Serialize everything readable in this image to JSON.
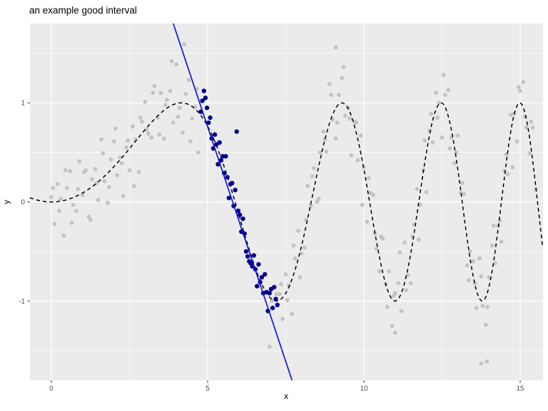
{
  "chart_data": {
    "type": "scatter",
    "title": "an example good interval",
    "xlabel": "x",
    "ylabel": "y",
    "xlim": [
      -0.685,
      15.73
    ],
    "ylim": [
      -1.8,
      1.8
    ],
    "x_ticks": [
      0,
      5,
      10,
      15
    ],
    "x_tick_labels": [
      "0",
      "5",
      "10",
      "15"
    ],
    "y_ticks": [
      -1,
      0,
      1
    ],
    "y_tick_labels": [
      "-1",
      "0",
      "1"
    ],
    "x_minor_gridlines": [
      2.5,
      7.5,
      12.5
    ],
    "y_minor_gridlines": [
      -1.5,
      -0.5,
      0.5,
      1.5
    ],
    "grid": "on",
    "legend": "none",
    "panel_background": "#EBEBEB",
    "grid_color": "#FFFFFF",
    "tick_label_color": "#4D4D4D",
    "series": [
      {
        "name": "background-points",
        "color": "#C3C3C3",
        "radius": 2.9,
        "points": [
          [
            0.0,
            0.05
          ],
          [
            0.1,
            -0.22
          ],
          [
            0.2,
            0.18
          ],
          [
            0.3,
            0.03
          ],
          [
            0.4,
            -0.34
          ],
          [
            0.5,
            0.14
          ],
          [
            0.6,
            0.31
          ],
          [
            0.7,
            -0.03
          ],
          [
            0.8,
            -0.09
          ],
          [
            0.9,
            0.41
          ],
          [
            1.0,
            0.07
          ],
          [
            1.1,
            0.32
          ],
          [
            1.2,
            -0.15
          ],
          [
            1.3,
            0.23
          ],
          [
            1.4,
            0.33
          ],
          [
            1.5,
            0.02
          ],
          [
            1.6,
            0.63
          ],
          [
            1.7,
            0.21
          ],
          [
            1.8,
            -0.01
          ],
          [
            1.9,
            0.43
          ],
          [
            2.0,
            0.61
          ],
          [
            2.1,
            0.27
          ],
          [
            2.2,
            0.45
          ],
          [
            2.3,
            0.06
          ],
          [
            2.4,
            0.55
          ],
          [
            2.5,
            0.32
          ],
          [
            2.6,
            0.76
          ],
          [
            2.7,
            0.63
          ],
          [
            2.8,
            0.3
          ],
          [
            2.9,
            0.81
          ],
          [
            3.0,
            1.01
          ],
          [
            3.1,
            0.69
          ],
          [
            3.2,
            0.65
          ],
          [
            3.3,
            1.17
          ],
          [
            3.4,
            0.85
          ],
          [
            3.5,
            1.1
          ],
          [
            3.6,
            0.64
          ],
          [
            3.7,
            1.03
          ],
          [
            3.8,
            1.12
          ],
          [
            3.9,
            0.8
          ],
          [
            4.0,
            1.39
          ],
          [
            4.1,
            0.95
          ],
          [
            4.2,
            0.7
          ],
          [
            4.3,
            1.09
          ],
          [
            4.4,
            1.23
          ],
          [
            4.5,
            0.84
          ],
          [
            4.6,
            0.96
          ],
          [
            4.7,
            0.5
          ],
          [
            0.05,
            0.14
          ],
          [
            0.25,
            -0.09
          ],
          [
            0.45,
            0.32
          ],
          [
            0.65,
            -0.21
          ],
          [
            0.85,
            0.13
          ],
          [
            1.05,
            0.3
          ],
          [
            1.25,
            -0.18
          ],
          [
            1.45,
            0.19
          ],
          [
            1.65,
            0.49
          ],
          [
            1.85,
            0.15
          ],
          [
            2.05,
            0.74
          ],
          [
            2.25,
            0.39
          ],
          [
            2.45,
            0.62
          ],
          [
            2.65,
            0.16
          ],
          [
            2.85,
            0.85
          ],
          [
            3.05,
            0.73
          ],
          [
            3.25,
            1.1
          ],
          [
            3.45,
            0.68
          ],
          [
            3.65,
            0.98
          ],
          [
            3.85,
            1.42
          ],
          [
            4.05,
            0.86
          ],
          [
            4.25,
            1.59
          ],
          [
            4.45,
            0.61
          ],
          [
            4.65,
            1.14
          ],
          [
            7.3,
            -0.93
          ],
          [
            7.4,
            -1.18
          ],
          [
            7.5,
            -0.73
          ],
          [
            7.6,
            -0.84
          ],
          [
            7.7,
            -1.13
          ],
          [
            7.8,
            -0.57
          ],
          [
            7.9,
            -0.29
          ],
          [
            8.0,
            -0.52
          ],
          [
            8.1,
            -0.46
          ],
          [
            8.2,
            0.16
          ],
          [
            8.3,
            -0.04
          ],
          [
            8.4,
            0.34
          ],
          [
            8.5,
            0.0
          ],
          [
            8.6,
            0.5
          ],
          [
            8.7,
            0.71
          ],
          [
            8.8,
            0.51
          ],
          [
            8.9,
            1.19
          ],
          [
            9.0,
            0.83
          ],
          [
            9.1,
            0.64
          ],
          [
            9.2,
            1.08
          ],
          [
            9.3,
            1.25
          ],
          [
            9.4,
            0.87
          ],
          [
            9.5,
            0.95
          ],
          [
            9.6,
            0.47
          ],
          [
            9.7,
            0.81
          ],
          [
            9.8,
            0.42
          ],
          [
            9.9,
            0.67
          ],
          [
            10.0,
            0.35
          ],
          [
            10.1,
            -0.2
          ],
          [
            10.2,
            0.09
          ],
          [
            10.3,
            0.07
          ],
          [
            10.4,
            -0.47
          ],
          [
            10.5,
            -0.7
          ],
          [
            10.6,
            -0.37
          ],
          [
            10.7,
            -0.83
          ],
          [
            10.8,
            -0.7
          ],
          [
            10.9,
            -1.25
          ],
          [
            11.0,
            -0.92
          ],
          [
            11.1,
            -0.82
          ],
          [
            11.2,
            -1.1
          ],
          [
            11.3,
            -0.41
          ],
          [
            11.4,
            -0.74
          ],
          [
            11.5,
            -0.82
          ],
          [
            11.6,
            -0.23
          ],
          [
            11.7,
            0.13
          ],
          [
            11.8,
            -0.03
          ],
          [
            11.9,
            0.32
          ],
          [
            12.0,
            0.1
          ],
          [
            12.1,
            0.72
          ],
          [
            12.2,
            0.6
          ],
          [
            12.3,
            1.1
          ],
          [
            12.4,
            1.0
          ],
          [
            12.5,
            0.65
          ],
          [
            12.6,
            1.08
          ],
          [
            12.7,
            1.13
          ],
          [
            12.8,
            0.65
          ],
          [
            12.9,
            0.39
          ],
          [
            13.0,
            0.67
          ],
          [
            13.1,
            0.09
          ],
          [
            13.2,
            0.08
          ],
          [
            13.3,
            -0.64
          ],
          [
            13.4,
            -0.5
          ],
          [
            13.5,
            -0.6
          ],
          [
            13.6,
            -1.07
          ],
          [
            13.7,
            -0.57
          ],
          [
            13.8,
            -1.05
          ],
          [
            13.9,
            -1.24
          ],
          [
            14.0,
            -0.76
          ],
          [
            14.1,
            -0.44
          ],
          [
            14.2,
            -0.62
          ],
          [
            14.3,
            -0.24
          ],
          [
            14.4,
            -0.4
          ],
          [
            14.5,
            0.31
          ],
          [
            14.6,
            0.28
          ],
          [
            14.7,
            0.88
          ],
          [
            14.8,
            0.89
          ],
          [
            14.9,
            0.61
          ],
          [
            15.0,
            1.12
          ],
          [
            15.1,
            1.21
          ],
          [
            15.2,
            0.75
          ],
          [
            15.3,
            0.49
          ],
          [
            15.4,
            0.75
          ],
          [
            15.5,
            0.13
          ],
          [
            7.35,
            -0.83
          ],
          [
            7.55,
            -0.99
          ],
          [
            7.75,
            -0.44
          ],
          [
            7.95,
            -0.76
          ],
          [
            8.15,
            -0.18
          ],
          [
            8.35,
            0.26
          ],
          [
            8.55,
            0.03
          ],
          [
            8.75,
            0.63
          ],
          [
            8.95,
            1.08
          ],
          [
            9.15,
            0.8
          ],
          [
            9.35,
            1.36
          ],
          [
            9.55,
            0.84
          ],
          [
            9.75,
            0.8
          ],
          [
            9.95,
            -0.03
          ],
          [
            10.15,
            0.24
          ],
          [
            10.35,
            -0.32
          ],
          [
            10.55,
            -0.35
          ],
          [
            10.75,
            -1.06
          ],
          [
            10.95,
            -0.95
          ],
          [
            11.15,
            -0.51
          ],
          [
            11.35,
            -0.89
          ],
          [
            11.55,
            -0.35
          ],
          [
            11.75,
            -0.38
          ],
          [
            11.95,
            0.62
          ],
          [
            12.15,
            0.89
          ],
          [
            12.35,
            0.85
          ],
          [
            12.55,
            1.28
          ],
          [
            12.75,
            0.54
          ],
          [
            12.95,
            0.5
          ],
          [
            13.15,
            0.19
          ],
          [
            13.35,
            -0.79
          ],
          [
            13.55,
            -0.82
          ],
          [
            13.75,
            -0.75
          ],
          [
            13.95,
            -1.06
          ],
          [
            14.15,
            -0.24
          ],
          [
            14.35,
            -0.19
          ],
          [
            14.55,
            0.48
          ],
          [
            14.75,
            0.35
          ],
          [
            14.95,
            1.16
          ],
          [
            15.15,
            0.86
          ],
          [
            15.35,
            0.81
          ],
          [
            9.1,
            1.56
          ],
          [
            13.75,
            -1.63
          ],
          [
            13.93,
            -1.61
          ],
          [
            11.0,
            -1.32
          ],
          [
            6.98,
            -1.46
          ],
          [
            7.05,
            -1.0
          ],
          [
            7.2,
            -0.93
          ]
        ]
      },
      {
        "name": "interval-points",
        "color": "#00008B",
        "radius": 3.2,
        "points": [
          [
            4.78,
            0.91
          ],
          [
            4.83,
            1.02
          ],
          [
            4.88,
            1.12
          ],
          [
            4.93,
            1.05
          ],
          [
            4.98,
            0.95
          ],
          [
            5.03,
            0.8
          ],
          [
            5.08,
            0.85
          ],
          [
            5.13,
            0.64
          ],
          [
            5.18,
            0.54
          ],
          [
            5.23,
            0.68
          ],
          [
            5.28,
            0.58
          ],
          [
            5.33,
            0.38
          ],
          [
            5.38,
            0.6
          ],
          [
            5.43,
            0.42
          ],
          [
            5.48,
            0.46
          ],
          [
            5.53,
            0.29
          ],
          [
            5.58,
            0.46
          ],
          [
            5.63,
            0.25
          ],
          [
            5.68,
            0.04
          ],
          [
            5.73,
            0.18
          ],
          [
            5.78,
            0.19
          ],
          [
            5.83,
            -0.04
          ],
          [
            5.88,
            0.12
          ],
          [
            5.93,
            0.71
          ],
          [
            5.98,
            -0.09
          ],
          [
            6.03,
            -0.13
          ],
          [
            6.08,
            -0.3
          ],
          [
            6.13,
            -0.17
          ],
          [
            6.18,
            -0.32
          ],
          [
            6.23,
            -0.5
          ],
          [
            6.28,
            -0.55
          ],
          [
            6.33,
            -0.6
          ],
          [
            6.38,
            -0.62
          ],
          [
            6.43,
            -0.65
          ],
          [
            6.48,
            -0.54
          ],
          [
            6.53,
            -0.68
          ],
          [
            6.58,
            -0.85
          ],
          [
            6.63,
            -0.63
          ],
          [
            6.68,
            -0.81
          ],
          [
            6.73,
            -0.76
          ],
          [
            6.78,
            -0.92
          ],
          [
            6.83,
            -0.73
          ],
          [
            6.88,
            -0.91
          ],
          [
            6.93,
            -1.1
          ],
          [
            6.98,
            -0.92
          ],
          [
            7.03,
            -0.88
          ],
          [
            7.08,
            -1.07
          ],
          [
            7.13,
            -0.86
          ],
          [
            7.18,
            -0.98
          ],
          [
            7.23,
            -1.04
          ]
        ]
      }
    ],
    "curve": {
      "name": "true-function-curve",
      "description": "y = sin(x^2 / 11), dashed black",
      "amplitude": 1,
      "phase_divisor": 11,
      "x_min": -0.685,
      "x_max": 15.73,
      "color": "#000000",
      "dash": "5.2,4.2",
      "width": 1.5
    },
    "fit_line": {
      "name": "linear-fit-line",
      "color": "#1414E0",
      "width": 1.7,
      "x1": 3.9,
      "y1": 1.8,
      "x2": 7.7,
      "y2": -1.8,
      "slope": -0.947,
      "intercept": 5.49
    }
  }
}
